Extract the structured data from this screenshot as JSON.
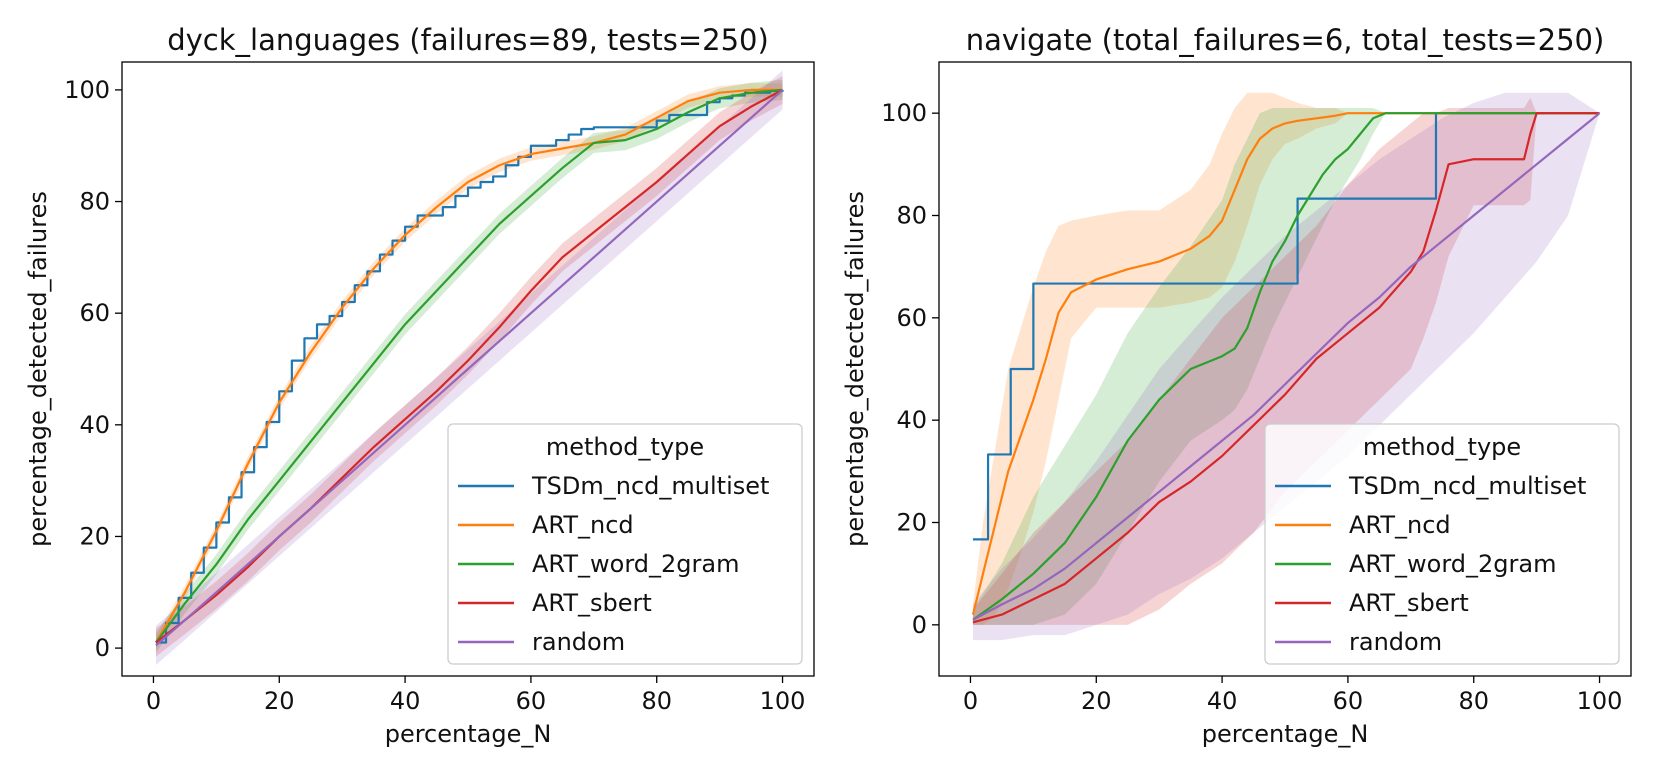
{
  "chart_data": [
    {
      "type": "line",
      "title": "dyck_languages (failures=89, tests=250)",
      "xlabel": "percentage_N",
      "ylabel": "percentage_detected_failures",
      "xlim": [
        -5,
        105
      ],
      "ylim": [
        -5,
        105
      ],
      "xticks": [
        0,
        20,
        40,
        60,
        80,
        100
      ],
      "yticks": [
        0,
        20,
        40,
        60,
        80,
        100
      ],
      "grid": false,
      "legend": {
        "title": "method_type",
        "position": "lower-right"
      },
      "series": [
        {
          "name": "TSDm_ncd_multiset",
          "color": "#1f77b4",
          "step": true,
          "x": [
            0.4,
            2,
            4,
            6,
            8,
            10,
            12,
            14,
            16,
            18,
            20,
            22,
            24,
            26,
            28,
            30,
            32,
            34,
            36,
            38,
            40,
            42,
            44,
            46,
            48,
            50,
            52,
            54,
            56,
            58,
            60,
            62,
            64,
            66,
            68,
            70,
            72,
            74,
            76,
            78,
            80,
            82,
            84,
            86,
            88,
            90,
            92,
            94,
            96,
            98,
            100
          ],
          "y": [
            1,
            4.5,
            9,
            13.5,
            18,
            22.5,
            27,
            31.5,
            36,
            40.5,
            46,
            51.5,
            55.5,
            58,
            59.5,
            62,
            65,
            67.5,
            70.5,
            73,
            75.5,
            77.5,
            77.5,
            79,
            81,
            82.5,
            83.5,
            84.5,
            86.5,
            88,
            90,
            90,
            91,
            92,
            93,
            93.3,
            93.3,
            93.3,
            93.3,
            93.3,
            94.5,
            95.5,
            95.5,
            95.5,
            97.8,
            98.5,
            99,
            99.5,
            99.5,
            99.8,
            100
          ],
          "band": null
        },
        {
          "name": "ART_ncd",
          "color": "#ff7f0e",
          "x": [
            0.4,
            5,
            10,
            15,
            20,
            25,
            30,
            35,
            40,
            45,
            50,
            55,
            60,
            65,
            70,
            75,
            80,
            85,
            90,
            95,
            100
          ],
          "y": [
            1,
            10,
            21,
            33,
            44,
            53,
            61,
            68,
            74,
            79,
            83.5,
            86.5,
            88.5,
            89.5,
            90.5,
            92,
            95,
            98,
            99.5,
            100,
            100
          ],
          "band": 1.2
        },
        {
          "name": "ART_word_2gram",
          "color": "#2ca02c",
          "x": [
            0.4,
            5,
            10,
            15,
            20,
            25,
            30,
            35,
            40,
            45,
            50,
            55,
            60,
            65,
            70,
            75,
            80,
            85,
            90,
            95,
            100
          ],
          "y": [
            1,
            8,
            15,
            23,
            30,
            37,
            44,
            51,
            58,
            64,
            70,
            76,
            81,
            86,
            90.5,
            91,
            93,
            96,
            98.5,
            99.5,
            100
          ],
          "band": 1.8
        },
        {
          "name": "ART_sbert",
          "color": "#d62728",
          "x": [
            0.4,
            5,
            10,
            15,
            20,
            25,
            30,
            35,
            40,
            45,
            50,
            55,
            60,
            65,
            70,
            75,
            80,
            85,
            90,
            95,
            100
          ],
          "y": [
            1,
            5,
            9.5,
            14.5,
            20,
            25,
            30.5,
            36,
            41,
            46,
            51.5,
            57.5,
            64,
            70,
            74.5,
            79,
            83.5,
            88.5,
            93.5,
            97,
            100
          ],
          "band": 2.5
        },
        {
          "name": "random",
          "color": "#9467bd",
          "x": [
            0.4,
            5,
            10,
            15,
            20,
            25,
            30,
            35,
            40,
            45,
            50,
            55,
            60,
            65,
            70,
            75,
            80,
            85,
            90,
            95,
            100
          ],
          "y": [
            0.5,
            5,
            10,
            15,
            20,
            25,
            30,
            35,
            40,
            45,
            50,
            55,
            60,
            65,
            70,
            75,
            80,
            85,
            90,
            95,
            100
          ],
          "band": 3.5
        }
      ]
    },
    {
      "type": "line",
      "title": "navigate (total_failures=6, total_tests=250)",
      "xlabel": "percentage_N",
      "ylabel": "percentage_detected_failures",
      "xlim": [
        -5,
        105
      ],
      "ylim": [
        -10,
        110
      ],
      "xticks": [
        0,
        20,
        40,
        60,
        80,
        100
      ],
      "yticks": [
        0,
        20,
        40,
        60,
        80,
        100
      ],
      "grid": false,
      "legend": {
        "title": "method_type",
        "position": "lower-right"
      },
      "series": [
        {
          "name": "TSDm_ncd_multiset",
          "color": "#1f77b4",
          "step": true,
          "x": [
            0.4,
            2.8,
            6.4,
            10,
            52,
            74,
            100
          ],
          "y": [
            16.7,
            33.3,
            50,
            66.7,
            83.3,
            100,
            100
          ],
          "band": null
        },
        {
          "name": "ART_ncd",
          "color": "#ff7f0e",
          "x": [
            0.4,
            2,
            4,
            6,
            8,
            10,
            12,
            14,
            16,
            20,
            25,
            30,
            35,
            38,
            40,
            42,
            44,
            46,
            48,
            50,
            52,
            55,
            58,
            60,
            62,
            65,
            100
          ],
          "y": [
            2,
            10,
            20,
            30,
            37,
            44,
            52,
            61,
            65,
            67.5,
            69.5,
            71,
            73.5,
            76,
            79,
            85,
            91,
            95,
            97,
            98,
            98.5,
            99,
            99.5,
            100,
            100,
            100,
            100
          ],
          "lo": [
            0,
            0,
            2,
            7,
            14,
            22,
            32,
            44,
            56,
            62,
            62,
            62,
            63,
            64,
            66,
            71,
            78,
            86,
            91,
            94,
            95,
            97,
            98,
            100,
            100,
            100,
            100
          ],
          "hi": [
            4,
            20,
            35,
            50,
            58,
            66,
            73,
            78,
            79,
            80,
            81,
            81,
            85,
            90,
            96,
            101,
            104,
            104,
            104,
            103,
            102,
            101,
            101,
            100,
            100,
            100,
            100
          ]
        },
        {
          "name": "ART_word_2gram",
          "color": "#2ca02c",
          "x": [
            0.4,
            5,
            10,
            15,
            20,
            25,
            30,
            35,
            40,
            42,
            44,
            46,
            48,
            50,
            52,
            54,
            56,
            58,
            60,
            62,
            64,
            66,
            100
          ],
          "y": [
            1,
            5,
            10,
            16,
            25,
            36,
            44,
            50,
            52.5,
            54,
            58,
            65,
            71,
            75,
            80,
            84,
            88,
            91,
            93,
            96,
            99,
            100,
            100
          ],
          "lo": [
            0,
            0,
            0,
            2,
            8,
            18,
            28,
            36,
            40,
            42,
            46,
            52,
            58,
            63,
            68,
            73,
            78,
            83,
            87,
            91,
            96,
            100,
            100
          ],
          "hi": [
            3,
            12,
            25,
            35,
            45,
            57,
            66,
            74,
            83,
            90,
            95,
            100,
            101,
            101,
            101,
            101,
            101,
            101,
            101,
            101,
            101,
            100,
            100
          ]
        },
        {
          "name": "ART_sbert",
          "color": "#d62728",
          "x": [
            0.4,
            5,
            10,
            15,
            20,
            25,
            30,
            35,
            40,
            45,
            50,
            55,
            60,
            65,
            70,
            72,
            74,
            76,
            80,
            84,
            88,
            89,
            90,
            100
          ],
          "y": [
            0.5,
            2,
            5,
            8,
            13,
            18,
            24,
            28,
            33,
            39,
            45,
            52,
            57,
            62,
            69,
            73,
            81,
            90,
            91,
            91,
            91,
            96,
            100,
            100
          ],
          "lo": [
            0,
            0,
            0,
            0,
            0,
            0,
            3,
            8,
            12,
            18,
            26,
            32,
            38,
            44,
            50,
            56,
            63,
            72,
            82,
            82,
            82,
            83,
            100,
            100
          ],
          "hi": [
            3,
            10,
            18,
            24,
            30,
            36,
            44,
            52,
            60,
            66,
            72,
            78,
            86,
            93,
            98,
            100,
            100,
            101,
            101,
            101,
            101,
            103,
            100,
            100
          ]
        },
        {
          "name": "random",
          "color": "#9467bd",
          "x": [
            0.4,
            5,
            10,
            15,
            20,
            25,
            30,
            35,
            40,
            45,
            50,
            55,
            60,
            65,
            70,
            75,
            80,
            85,
            90,
            95,
            100
          ],
          "y": [
            1,
            4,
            7,
            11,
            16,
            21,
            26,
            31,
            36,
            41,
            47,
            53,
            59,
            64,
            70,
            75,
            80,
            85,
            90,
            95,
            100
          ],
          "lo": [
            -3,
            -3,
            -2,
            -2,
            0,
            2,
            6,
            9,
            13,
            18,
            23,
            28,
            33,
            39,
            45,
            51,
            57,
            64,
            71,
            80,
            100
          ],
          "hi": [
            4,
            11,
            17,
            24,
            32,
            41,
            50,
            57,
            64,
            70,
            76,
            81,
            86,
            91,
            95,
            99,
            102,
            104,
            104,
            104,
            100
          ]
        }
      ]
    }
  ]
}
